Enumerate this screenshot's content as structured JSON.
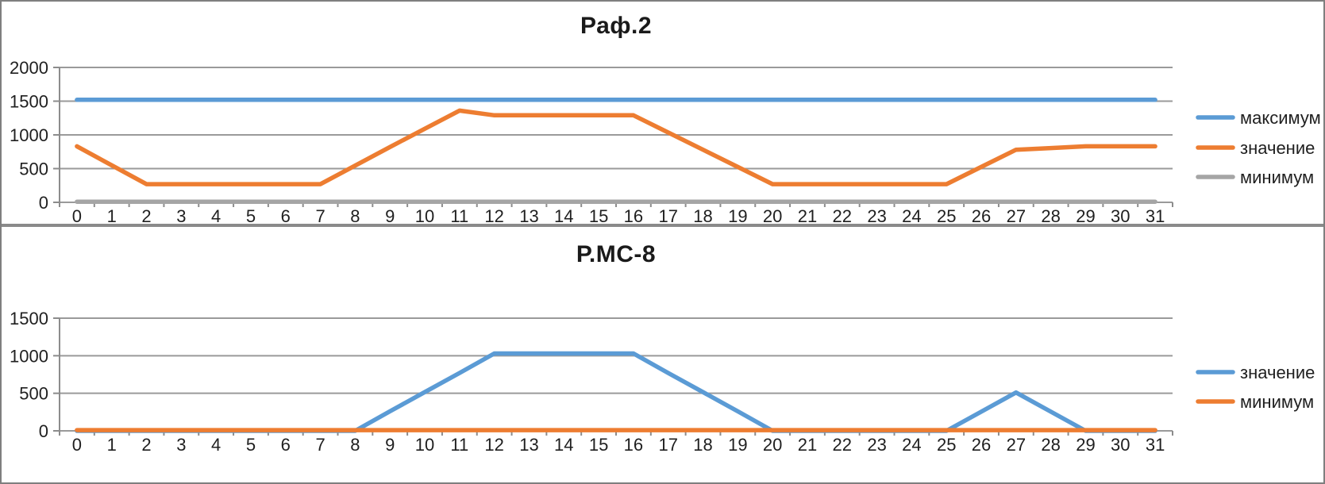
{
  "colors": {
    "blue": "#5B9BD5",
    "orange": "#ED7D31",
    "gray_series": "#A5A5A5",
    "grid": "#9a9a9a",
    "axis": "#8c8c8c",
    "text": "#1f1f1f",
    "panel_border": "#7f7f7f"
  },
  "chart_data": [
    {
      "type": "line",
      "title": "Раф.2",
      "categories": [
        0,
        1,
        2,
        3,
        4,
        5,
        6,
        7,
        8,
        9,
        10,
        11,
        12,
        13,
        14,
        15,
        16,
        17,
        18,
        19,
        20,
        21,
        22,
        23,
        24,
        25,
        26,
        27,
        28,
        29,
        30,
        31
      ],
      "xlabel": "",
      "ylabel": "",
      "ylim": [
        0,
        2000
      ],
      "yticks": [
        0,
        500,
        1000,
        1500,
        2000
      ],
      "grid": true,
      "legend_position": "right",
      "series": [
        {
          "name": "максимум",
          "color": "#5B9BD5",
          "values": [
            1520,
            1520,
            1520,
            1520,
            1520,
            1520,
            1520,
            1520,
            1520,
            1520,
            1520,
            1520,
            1520,
            1520,
            1520,
            1520,
            1520,
            1520,
            1520,
            1520,
            1520,
            1520,
            1520,
            1520,
            1520,
            1520,
            1520,
            1520,
            1520,
            1520,
            1520,
            1520
          ]
        },
        {
          "name": "значение",
          "color": "#ED7D31",
          "values": [
            830,
            550,
            270,
            270,
            270,
            270,
            270,
            270,
            545,
            820,
            1090,
            1360,
            1290,
            1290,
            1290,
            1290,
            1290,
            1035,
            780,
            525,
            270,
            270,
            270,
            270,
            270,
            270,
            525,
            780,
            805,
            830,
            830,
            830
          ]
        },
        {
          "name": "минимум",
          "color": "#A5A5A5",
          "values": [
            10,
            10,
            10,
            10,
            10,
            10,
            10,
            10,
            10,
            10,
            10,
            10,
            10,
            10,
            10,
            10,
            10,
            10,
            10,
            10,
            10,
            10,
            10,
            10,
            10,
            10,
            10,
            10,
            10,
            10,
            10,
            10
          ]
        }
      ]
    },
    {
      "type": "line",
      "title": "Р.МС-8",
      "categories": [
        0,
        1,
        2,
        3,
        4,
        5,
        6,
        7,
        8,
        9,
        10,
        11,
        12,
        13,
        14,
        15,
        16,
        17,
        18,
        19,
        20,
        21,
        22,
        23,
        24,
        25,
        26,
        27,
        28,
        29,
        30,
        31
      ],
      "xlabel": "",
      "ylabel": "",
      "ylim": [
        0,
        1500
      ],
      "yticks": [
        0,
        500,
        1000,
        1500
      ],
      "grid": true,
      "legend_position": "right",
      "series": [
        {
          "name": "значение",
          "color": "#5B9BD5",
          "values": [
            0,
            0,
            0,
            0,
            0,
            0,
            0,
            0,
            0,
            260,
            515,
            770,
            1030,
            1030,
            1030,
            1030,
            1030,
            770,
            515,
            260,
            0,
            0,
            0,
            0,
            0,
            0,
            255,
            510,
            255,
            0,
            0,
            0
          ]
        },
        {
          "name": "минимум",
          "color": "#ED7D31",
          "values": [
            10,
            10,
            10,
            10,
            10,
            10,
            10,
            10,
            10,
            10,
            10,
            10,
            10,
            10,
            10,
            10,
            10,
            10,
            10,
            10,
            10,
            10,
            10,
            10,
            10,
            10,
            10,
            10,
            10,
            10,
            10,
            10
          ]
        }
      ]
    }
  ]
}
